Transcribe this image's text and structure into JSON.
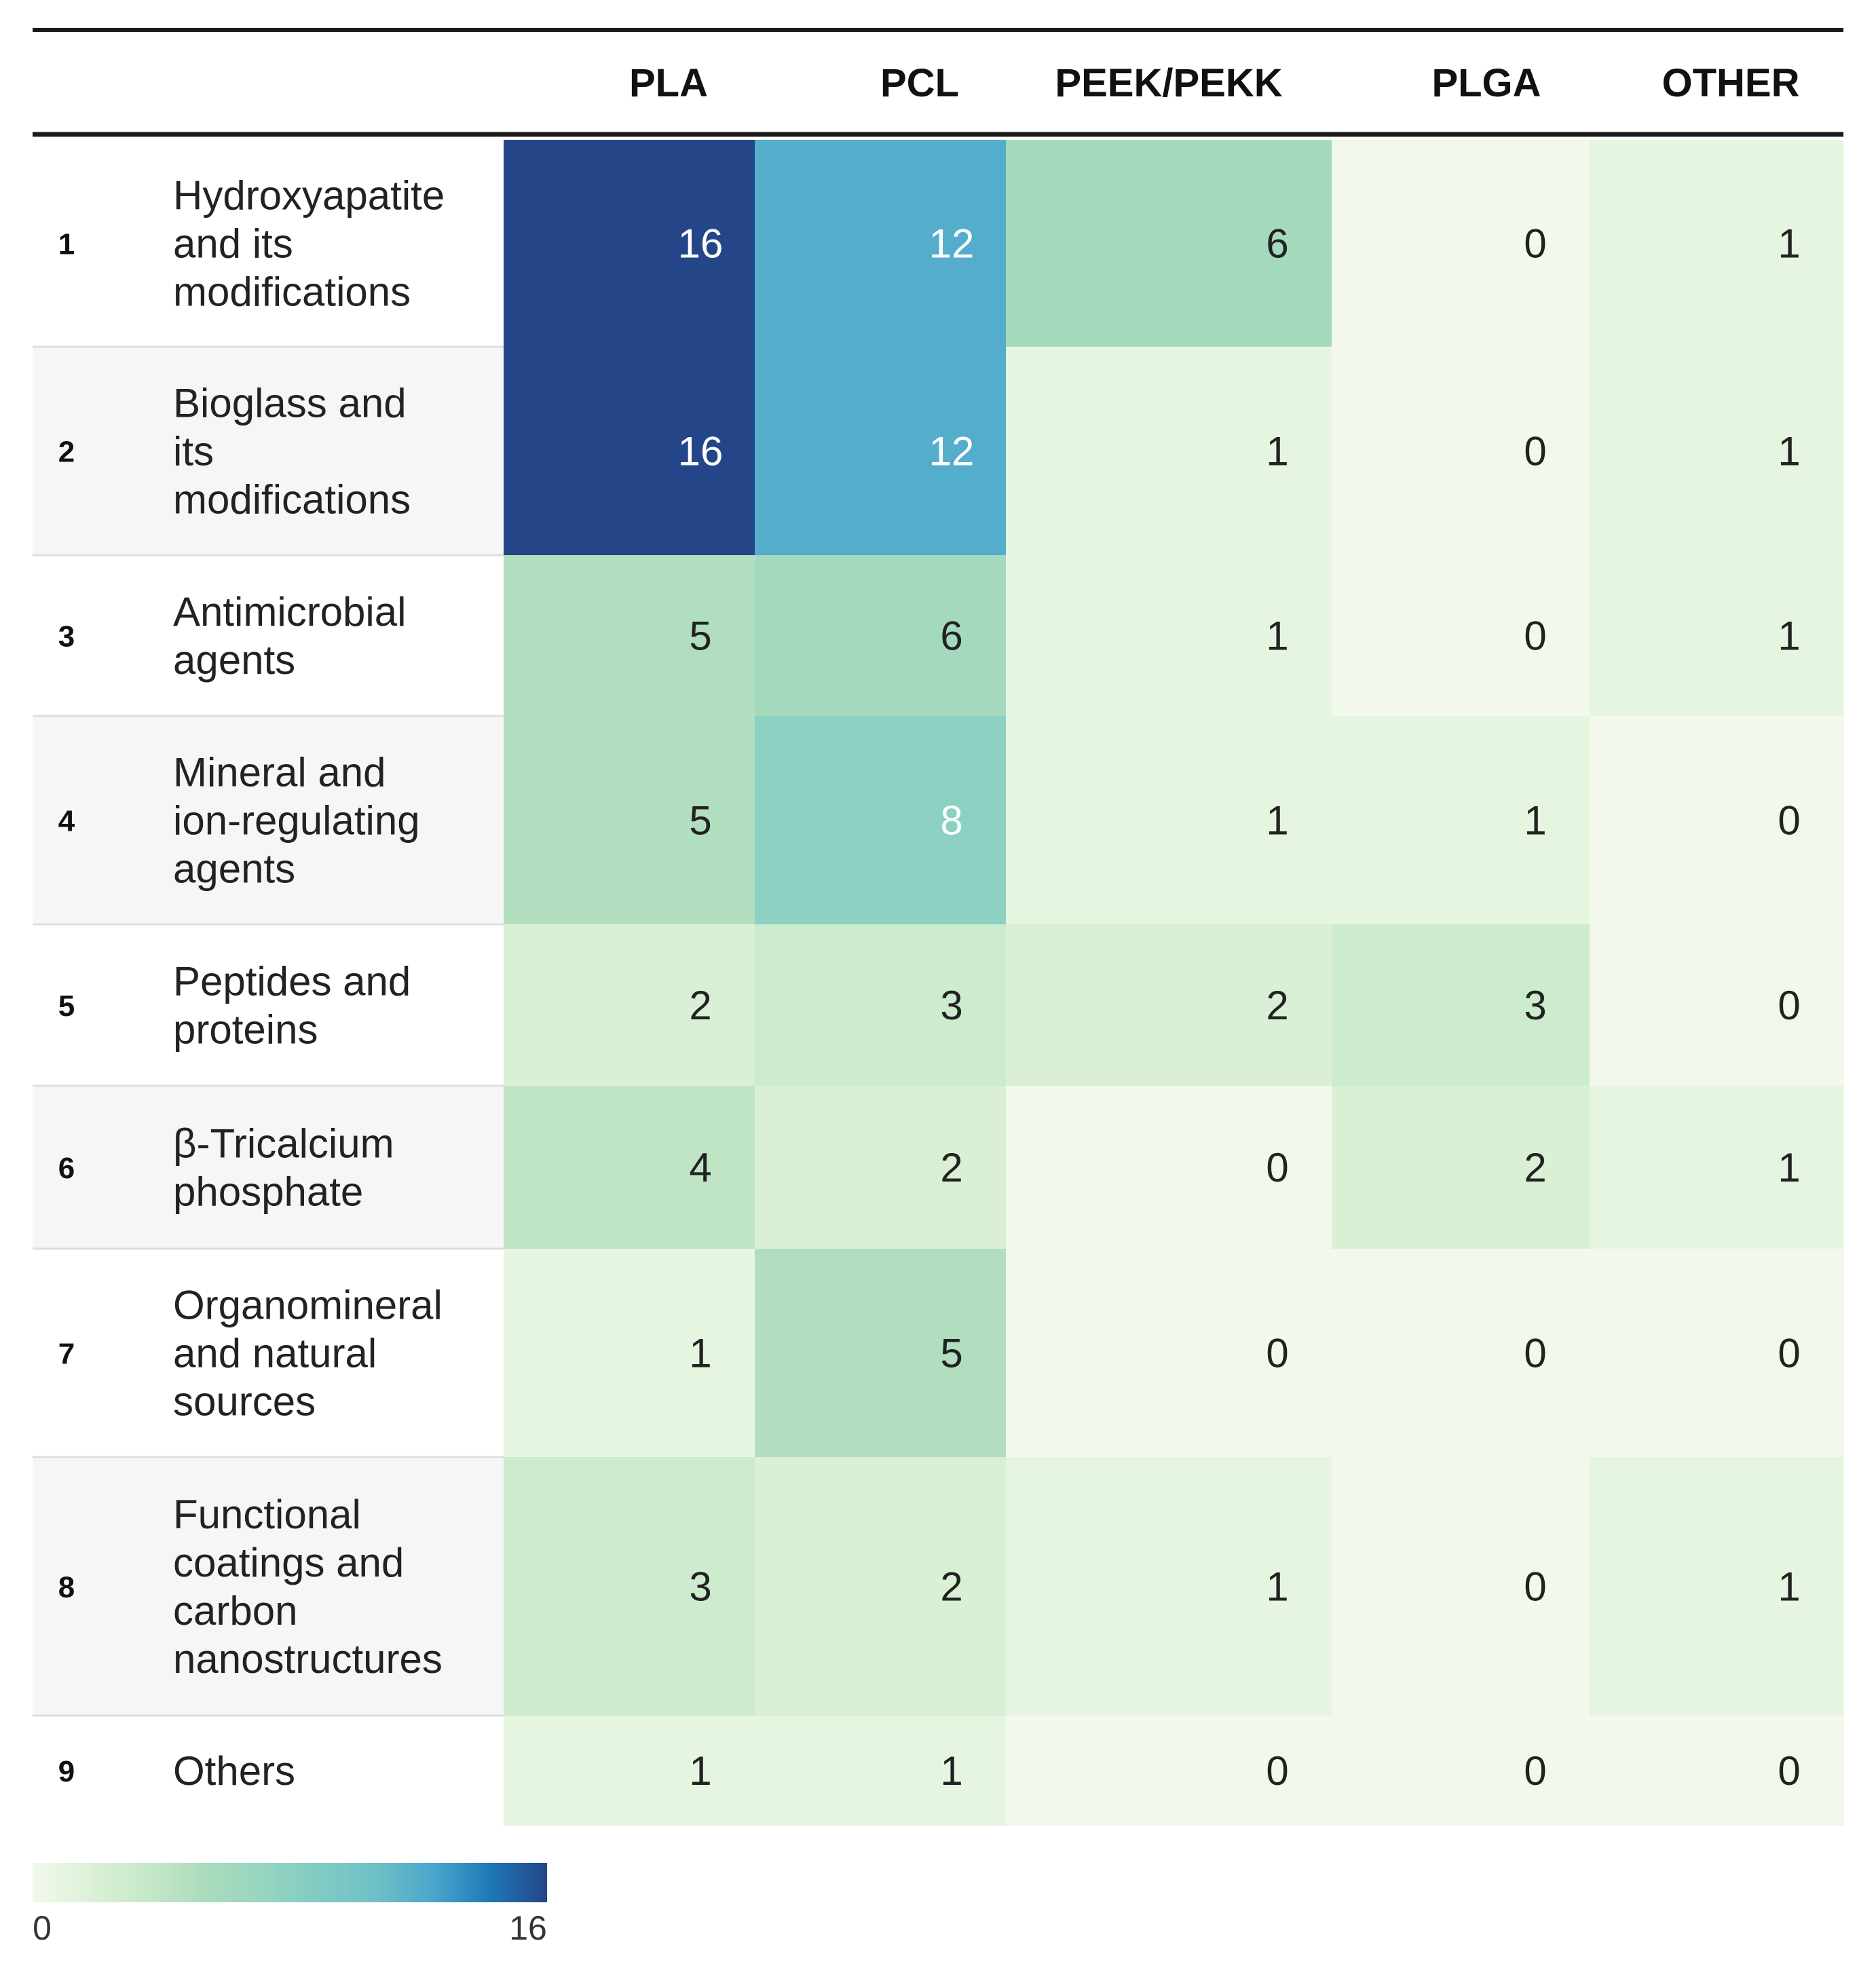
{
  "chart_data": {
    "type": "heatmap",
    "columns": [
      "PLA",
      "PCL",
      "PEEK/PEKK",
      "PLGA",
      "OTHER"
    ],
    "rows": [
      {
        "index": "1",
        "label": [
          "Hydroxyapatite",
          "and its",
          "modifications"
        ]
      },
      {
        "index": "2",
        "label": [
          "Bioglass and",
          "its",
          "modifications"
        ]
      },
      {
        "index": "3",
        "label": [
          "Antimicrobial",
          "agents"
        ]
      },
      {
        "index": "4",
        "label": [
          "Mineral and",
          "ion-regulating",
          "agents"
        ]
      },
      {
        "index": "5",
        "label": [
          "Peptides and",
          "proteins"
        ]
      },
      {
        "index": "6",
        "label": [
          "β-Tricalcium",
          "phosphate"
        ]
      },
      {
        "index": "7",
        "label": [
          "Organomineral",
          "and natural",
          "sources"
        ]
      },
      {
        "index": "8",
        "label": [
          "Functional",
          "coatings and",
          "carbon",
          "nanostructures"
        ]
      },
      {
        "index": "9",
        "label": [
          "Others"
        ]
      }
    ],
    "values": [
      [
        16,
        12,
        6,
        0,
        1
      ],
      [
        16,
        12,
        1,
        0,
        1
      ],
      [
        5,
        6,
        1,
        0,
        1
      ],
      [
        5,
        8,
        1,
        1,
        0
      ],
      [
        2,
        3,
        2,
        3,
        0
      ],
      [
        4,
        2,
        0,
        2,
        1
      ],
      [
        1,
        5,
        0,
        0,
        0
      ],
      [
        3,
        2,
        1,
        0,
        1
      ],
      [
        1,
        1,
        0,
        0,
        0
      ]
    ],
    "color_scale": {
      "min": 0,
      "max": 16,
      "min_label": "0",
      "max_label": "16",
      "stops": [
        "#f2f9ec",
        "#dcf1d7",
        "#c6e8c8",
        "#acdcbc",
        "#97d5c1",
        "#80cbc3",
        "#6fc0c7",
        "#4aa7cc",
        "#1f79b7",
        "#244588"
      ]
    },
    "row_backgrounds": [
      "#ffffff",
      "#f6f6f6"
    ],
    "text_colors": {
      "dark": "#222222",
      "light": "#ffffff"
    }
  }
}
